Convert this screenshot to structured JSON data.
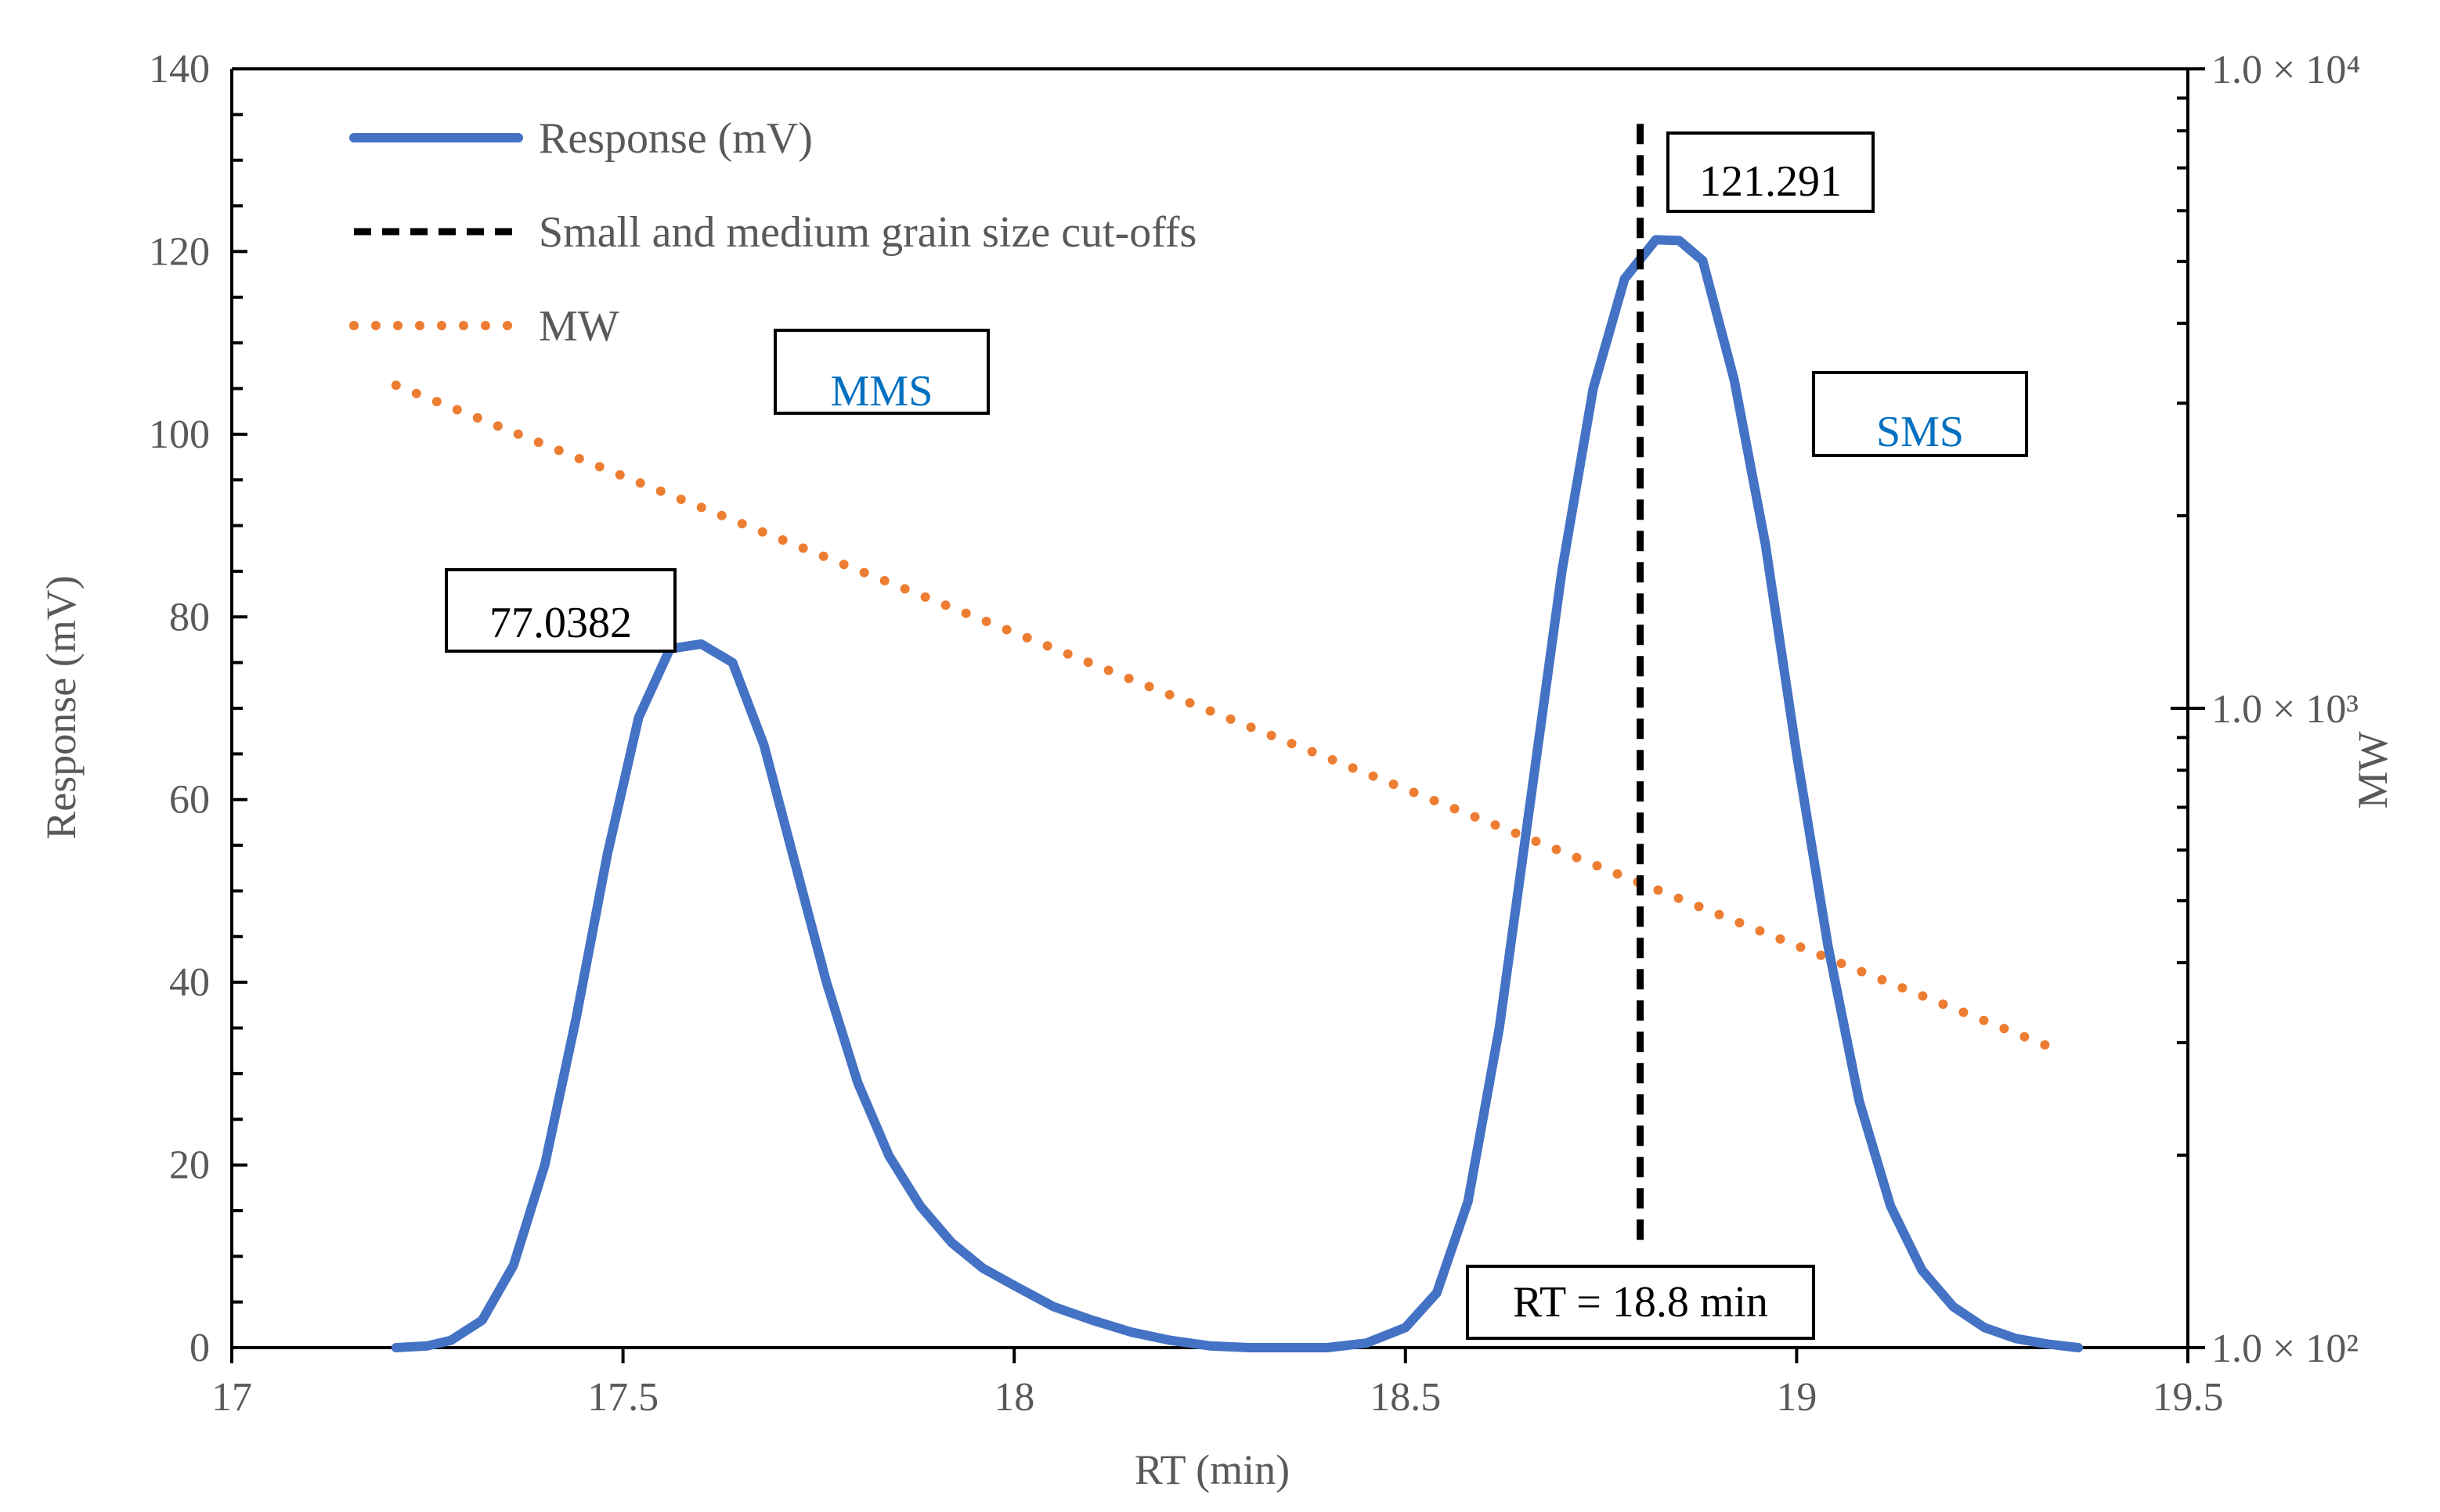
{
  "chart_data": {
    "type": "line",
    "title": "",
    "xlabel": "RT (min)",
    "ylabel": "Response (mV)",
    "y2label": "MW",
    "xlim": [
      17,
      19.5
    ],
    "ylim": [
      0,
      140
    ],
    "y2lim": [
      100,
      10000
    ],
    "y2scale": "log",
    "x_ticks": [
      "17",
      "17.5",
      "18",
      "18.5",
      "19",
      "19.5"
    ],
    "y_ticks": [
      "0",
      "20",
      "40",
      "60",
      "80",
      "100",
      "120",
      "140"
    ],
    "y2_ticks": [
      {
        "value": 100,
        "label": "1.0 × 10²"
      },
      {
        "value": 1000,
        "label": "1.0 × 10³"
      },
      {
        "value": 10000,
        "label": "1.0 × 10⁴"
      }
    ],
    "legend_position": "top-left",
    "series": [
      {
        "name": "Response (mV)",
        "style": "solid",
        "color": "#4472C4",
        "axis": "left",
        "x": [
          17.21,
          17.25,
          17.28,
          17.32,
          17.36,
          17.4,
          17.44,
          17.48,
          17.52,
          17.56,
          17.6,
          17.64,
          17.68,
          17.72,
          17.76,
          17.8,
          17.84,
          17.88,
          17.92,
          17.96,
          18.0,
          18.05,
          18.1,
          18.15,
          18.2,
          18.25,
          18.3,
          18.35,
          18.4,
          18.45,
          18.5,
          18.54,
          18.58,
          18.62,
          18.66,
          18.7,
          18.74,
          18.78,
          18.82,
          18.85,
          18.88,
          18.92,
          18.96,
          19.0,
          19.04,
          19.08,
          19.12,
          19.16,
          19.2,
          19.24,
          19.28,
          19.32,
          19.36
        ],
        "y": [
          0,
          0.2,
          0.8,
          3,
          9,
          20,
          36,
          54,
          69,
          76.5,
          77.0382,
          75,
          66,
          53,
          40,
          29,
          21,
          15.5,
          11.5,
          8.7,
          6.8,
          4.5,
          3,
          1.7,
          0.8,
          0.2,
          0,
          0,
          0,
          0.5,
          2.2,
          6,
          16,
          35,
          60,
          85,
          105,
          117,
          121.291,
          121.2,
          119,
          106,
          88,
          65,
          44,
          27,
          15.5,
          8.5,
          4.5,
          2.2,
          1,
          0.4,
          0
        ]
      },
      {
        "name": "Small and medium grain size cut-offs",
        "style": "dashed",
        "color": "#000000",
        "axis": "left",
        "x": [
          18.8,
          18.8
        ],
        "y": [
          11.8,
          135
        ]
      },
      {
        "name": "MW",
        "style": "dotted",
        "color": "#ED7D31",
        "axis": "right",
        "x": [
          17.21,
          19.34
        ],
        "y": [
          3200,
          290
        ]
      }
    ],
    "annotations": [
      {
        "text": "77.0382",
        "kind": "callout"
      },
      {
        "text": "121.291",
        "kind": "callout"
      },
      {
        "text": "RT = 18.8 min",
        "kind": "callout"
      },
      {
        "text": "MMS",
        "kind": "region",
        "color": "#0070C0"
      },
      {
        "text": "SMS",
        "kind": "region",
        "color": "#0070C0"
      }
    ]
  }
}
